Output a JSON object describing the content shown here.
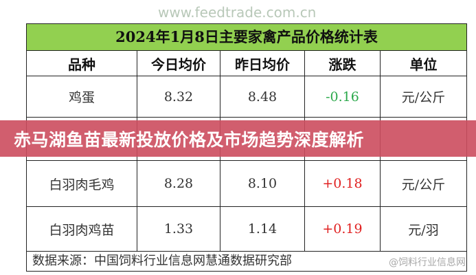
{
  "table": {
    "title": "2024年1月8日主要家禽产品价格统计表",
    "headers": [
      "品种",
      "今日均价",
      "昨日均价",
      "涨跌",
      "单位"
    ],
    "rows": [
      {
        "name": "鸡蛋",
        "today": "8.32",
        "yesterday": "8.48",
        "change": "-0.16",
        "unit": "元/公斤"
      },
      {
        "name": "",
        "today": "",
        "yesterday": "",
        "change": "",
        "unit": ""
      },
      {
        "name": "白羽肉毛鸡",
        "today": "8.28",
        "yesterday": "8.10",
        "change": "+0.18",
        "unit": "元/公斤"
      },
      {
        "name": "白羽肉鸡苗",
        "today": "1.33",
        "yesterday": "1.14",
        "change": "+0.19",
        "unit": "元/羽"
      }
    ],
    "source": "数据来源：中国饲料行业信息网慧通数据研究部"
  },
  "colors": {
    "title_bg": "#92d050",
    "down": "#2aa84a",
    "up": "#e02020",
    "banner": "#cc4c5e"
  },
  "watermark": "@饲料行业信息网",
  "watermark_center": "www.feedtrade.com.cn",
  "banner": {
    "title": "赤马湖鱼苗最新投放价格及市场趋势深度解析"
  }
}
